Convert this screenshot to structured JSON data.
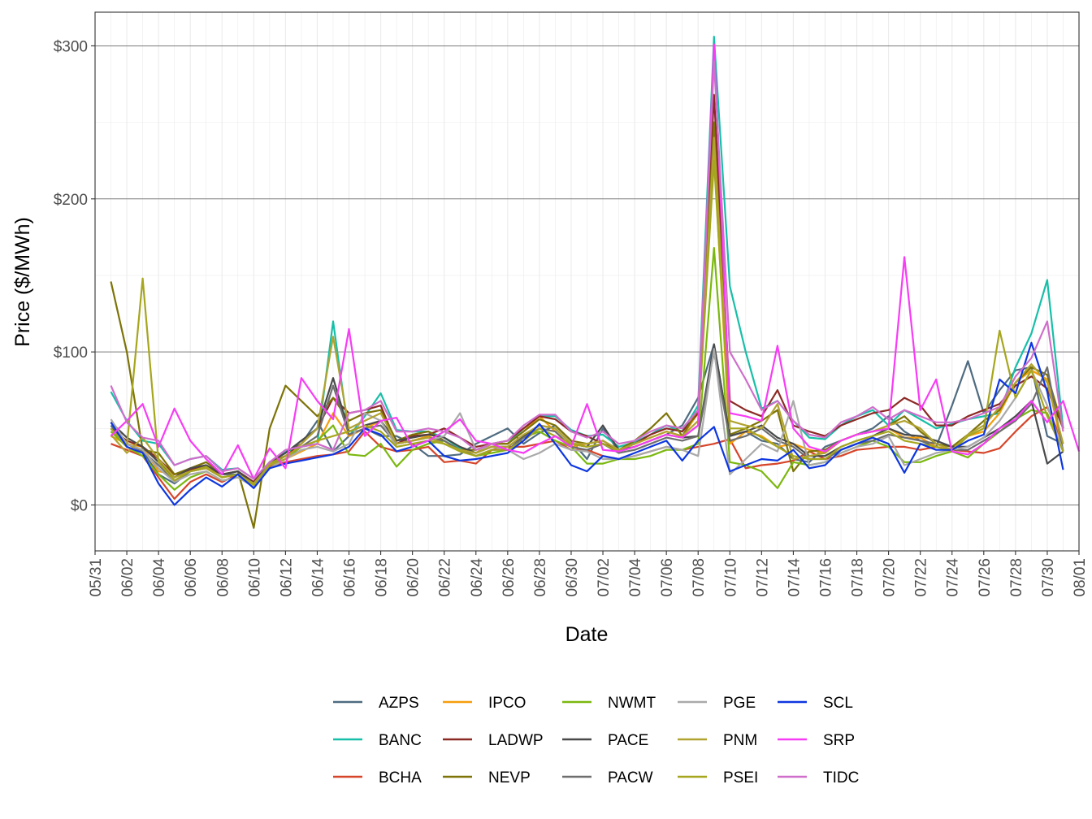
{
  "chart_data": {
    "type": "line",
    "title": "",
    "xlabel": "Date",
    "ylabel": "Price ($/MWh)",
    "ylim": [
      -30,
      322
    ],
    "y_ticks": [
      0,
      100,
      200,
      300
    ],
    "y_tick_labels": [
      "$0",
      "$100",
      "$200",
      "$300"
    ],
    "x_tick_labels": [
      "05/31",
      "06/02",
      "06/04",
      "06/06",
      "06/08",
      "06/10",
      "06/12",
      "06/14",
      "06/16",
      "06/18",
      "06/20",
      "06/22",
      "06/24",
      "06/26",
      "06/28",
      "06/30",
      "07/02",
      "07/04",
      "07/06",
      "07/08",
      "07/10",
      "07/12",
      "07/14",
      "07/16",
      "07/18",
      "07/20",
      "07/22",
      "07/24",
      "07/26",
      "07/28",
      "07/30",
      "08/01"
    ],
    "x_range_days": [
      0,
      62
    ],
    "x_start_day": 1,
    "x_step_days": 1,
    "grid": true,
    "legend_position": "bottom",
    "series": [
      {
        "name": "AZPS",
        "color": "#4f6b80",
        "values": [
          52,
          40,
          35,
          20,
          14,
          22,
          25,
          20,
          20,
          15,
          28,
          35,
          40,
          55,
          35,
          45,
          50,
          45,
          45,
          40,
          32,
          32,
          33,
          40,
          45,
          50,
          40,
          47,
          52,
          42,
          30,
          50,
          35,
          38,
          42,
          46,
          52,
          70,
          105,
          45,
          48,
          42,
          40,
          30,
          28,
          38,
          42,
          46,
          50,
          58,
          48,
          42,
          38,
          65,
          94,
          60,
          75,
          88,
          90,
          45,
          40
        ]
      },
      {
        "name": "BANC",
        "color": "#17bfa8",
        "values": [
          74,
          55,
          42,
          40,
          26,
          30,
          32,
          23,
          24,
          17,
          28,
          35,
          38,
          40,
          120,
          45,
          58,
          73,
          49,
          48,
          48,
          44,
          37,
          34,
          40,
          40,
          50,
          58,
          58,
          49,
          45,
          46,
          38,
          41,
          46,
          52,
          48,
          65,
          306,
          143,
          100,
          63,
          68,
          55,
          44,
          43,
          52,
          58,
          62,
          52,
          62,
          56,
          50,
          53,
          56,
          58,
          60,
          90,
          112,
          147,
          50
        ]
      },
      {
        "name": "BCHA",
        "color": "#d6452a",
        "values": [
          40,
          36,
          32,
          18,
          4,
          15,
          20,
          15,
          20,
          12,
          25,
          28,
          30,
          32,
          33,
          35,
          48,
          38,
          35,
          36,
          38,
          28,
          29,
          27,
          36,
          38,
          38,
          40,
          42,
          36,
          36,
          32,
          30,
          32,
          35,
          38,
          36,
          38,
          40,
          43,
          24,
          26,
          27,
          29,
          35,
          30,
          32,
          36,
          37,
          38,
          38,
          36,
          38,
          36,
          35,
          34,
          37,
          48,
          58,
          64,
          40
        ]
      },
      {
        "name": "IPCO",
        "color": "#f59e0c",
        "values": [
          45,
          40,
          38,
          22,
          20,
          22,
          24,
          18,
          20,
          15,
          26,
          30,
          35,
          40,
          60,
          45,
          50,
          55,
          40,
          42,
          45,
          40,
          36,
          34,
          40,
          40,
          48,
          58,
          48,
          38,
          40,
          42,
          36,
          40,
          44,
          48,
          45,
          60,
          230,
          40,
          48,
          45,
          38,
          40,
          36,
          34,
          42,
          46,
          48,
          50,
          44,
          44,
          38,
          36,
          45,
          48,
          60,
          80,
          88,
          82,
          35
        ]
      },
      {
        "name": "LADWP",
        "color": "#8b2a25",
        "values": [
          50,
          42,
          38,
          30,
          20,
          23,
          25,
          20,
          22,
          15,
          28,
          32,
          40,
          50,
          70,
          60,
          62,
          65,
          40,
          45,
          46,
          50,
          44,
          38,
          40,
          42,
          50,
          58,
          56,
          48,
          45,
          40,
          36,
          40,
          46,
          50,
          48,
          60,
          268,
          68,
          62,
          58,
          75,
          52,
          48,
          45,
          52,
          56,
          60,
          62,
          70,
          65,
          52,
          52,
          58,
          62,
          66,
          78,
          84,
          76,
          50
        ]
      },
      {
        "name": "NEVP",
        "color": "#7d7307",
        "values": [
          146,
          100,
          36,
          34,
          20,
          24,
          28,
          20,
          22,
          -15,
          50,
          78,
          68,
          58,
          70,
          55,
          60,
          62,
          42,
          46,
          48,
          42,
          36,
          36,
          40,
          40,
          48,
          56,
          52,
          42,
          40,
          42,
          36,
          42,
          50,
          60,
          45,
          62,
          250,
          46,
          50,
          55,
          62,
          22,
          35,
          36,
          42,
          46,
          48,
          52,
          58,
          48,
          40,
          38,
          46,
          55,
          62,
          80,
          90,
          85,
          50
        ]
      },
      {
        "name": "NWMT",
        "color": "#7bb80f",
        "values": [
          48,
          38,
          32,
          20,
          10,
          18,
          22,
          16,
          18,
          12,
          26,
          30,
          38,
          42,
          52,
          33,
          32,
          40,
          25,
          36,
          40,
          42,
          36,
          32,
          34,
          36,
          44,
          48,
          42,
          38,
          27,
          27,
          30,
          30,
          32,
          36,
          36,
          40,
          168,
          28,
          26,
          22,
          11,
          28,
          26,
          28,
          34,
          38,
          42,
          38,
          28,
          28,
          32,
          35,
          31,
          40,
          48,
          56,
          62,
          60,
          35
        ]
      },
      {
        "name": "PACE",
        "color": "#48494a",
        "values": [
          54,
          44,
          38,
          28,
          18,
          24,
          26,
          20,
          22,
          14,
          28,
          34,
          42,
          50,
          83,
          48,
          52,
          55,
          42,
          44,
          46,
          44,
          38,
          34,
          38,
          38,
          45,
          52,
          50,
          40,
          38,
          52,
          36,
          38,
          42,
          46,
          44,
          45,
          105,
          45,
          48,
          52,
          44,
          40,
          32,
          32,
          38,
          42,
          45,
          50,
          46,
          45,
          42,
          38,
          38,
          44,
          50,
          58,
          68,
          27,
          35
        ]
      },
      {
        "name": "PACW",
        "color": "#6e6e6e",
        "values": [
          50,
          40,
          35,
          26,
          16,
          22,
          24,
          18,
          20,
          13,
          26,
          32,
          38,
          45,
          78,
          46,
          50,
          52,
          40,
          42,
          44,
          42,
          36,
          32,
          36,
          36,
          44,
          50,
          48,
          38,
          36,
          40,
          34,
          36,
          40,
          44,
          42,
          45,
          100,
          42,
          45,
          50,
          42,
          38,
          30,
          30,
          36,
          40,
          42,
          46,
          44,
          42,
          40,
          36,
          36,
          42,
          48,
          55,
          66,
          90,
          35
        ]
      },
      {
        "name": "PGE",
        "color": "#a9a9a9",
        "values": [
          56,
          40,
          36,
          24,
          15,
          20,
          22,
          16,
          18,
          12,
          24,
          30,
          36,
          38,
          35,
          40,
          60,
          55,
          38,
          40,
          42,
          45,
          60,
          36,
          38,
          36,
          30,
          34,
          40,
          36,
          35,
          30,
          30,
          32,
          35,
          38,
          36,
          32,
          102,
          20,
          30,
          40,
          35,
          68,
          26,
          28,
          34,
          38,
          40,
          45,
          26,
          30,
          34,
          36,
          38,
          44,
          55,
          70,
          88,
          65,
          35
        ]
      },
      {
        "name": "PNM",
        "color": "#b1a330",
        "values": [
          46,
          34,
          44,
          30,
          18,
          22,
          24,
          18,
          20,
          14,
          26,
          30,
          40,
          50,
          110,
          50,
          55,
          60,
          40,
          42,
          44,
          40,
          36,
          34,
          38,
          38,
          46,
          52,
          50,
          40,
          40,
          42,
          36,
          40,
          44,
          48,
          45,
          55,
          240,
          55,
          52,
          50,
          66,
          30,
          32,
          34,
          42,
          46,
          48,
          52,
          55,
          50,
          40,
          36,
          46,
          52,
          64,
          80,
          92,
          80,
          40
        ]
      },
      {
        "name": "PSEI",
        "color": "#a6a61e",
        "values": [
          50,
          38,
          148,
          28,
          16,
          22,
          25,
          18,
          20,
          13,
          27,
          32,
          38,
          42,
          45,
          48,
          52,
          48,
          38,
          40,
          42,
          40,
          35,
          32,
          36,
          36,
          42,
          50,
          45,
          40,
          38,
          40,
          35,
          38,
          42,
          46,
          44,
          52,
          225,
          50,
          50,
          44,
          38,
          32,
          30,
          30,
          38,
          42,
          45,
          48,
          42,
          40,
          38,
          35,
          45,
          50,
          114,
          70,
          88,
          58,
          35
        ]
      },
      {
        "name": "SCL",
        "color": "#0d36e0",
        "values": [
          54,
          38,
          34,
          14,
          0,
          10,
          18,
          12,
          20,
          11,
          24,
          27,
          29,
          31,
          33,
          38,
          50,
          46,
          35,
          38,
          42,
          32,
          29,
          30,
          32,
          34,
          42,
          53,
          40,
          26,
          22,
          32,
          30,
          34,
          38,
          42,
          29,
          42,
          51,
          22,
          26,
          30,
          29,
          36,
          24,
          26,
          36,
          40,
          44,
          40,
          21,
          40,
          36,
          36,
          42,
          46,
          82,
          73,
          106,
          74,
          23
        ]
      },
      {
        "name": "SRP",
        "color": "#f73cf5",
        "values": [
          45,
          55,
          66,
          38,
          63,
          42,
          30,
          20,
          39,
          17,
          37,
          24,
          83,
          68,
          56,
          115,
          45,
          55,
          57,
          38,
          42,
          48,
          56,
          42,
          40,
          36,
          34,
          40,
          45,
          38,
          66,
          36,
          35,
          38,
          42,
          46,
          44,
          52,
          301,
          60,
          58,
          55,
          104,
          50,
          38,
          35,
          42,
          46,
          48,
          50,
          162,
          62,
          82,
          35,
          33,
          40,
          50,
          56,
          68,
          54,
          68,
          35
        ]
      },
      {
        "name": "TIDC",
        "color": "#cf6ecb",
        "values": [
          78,
          54,
          44,
          42,
          26,
          30,
          32,
          22,
          24,
          17,
          28,
          36,
          38,
          40,
          36,
          60,
          62,
          68,
          48,
          48,
          50,
          48,
          44,
          36,
          40,
          42,
          52,
          59,
          59,
          48,
          44,
          48,
          40,
          42,
          48,
          52,
          50,
          62,
          290,
          100,
          82,
          62,
          68,
          55,
          46,
          44,
          54,
          58,
          64,
          56,
          62,
          58,
          54,
          54,
          56,
          60,
          64,
          84,
          96,
          120,
          48
        ]
      }
    ]
  }
}
